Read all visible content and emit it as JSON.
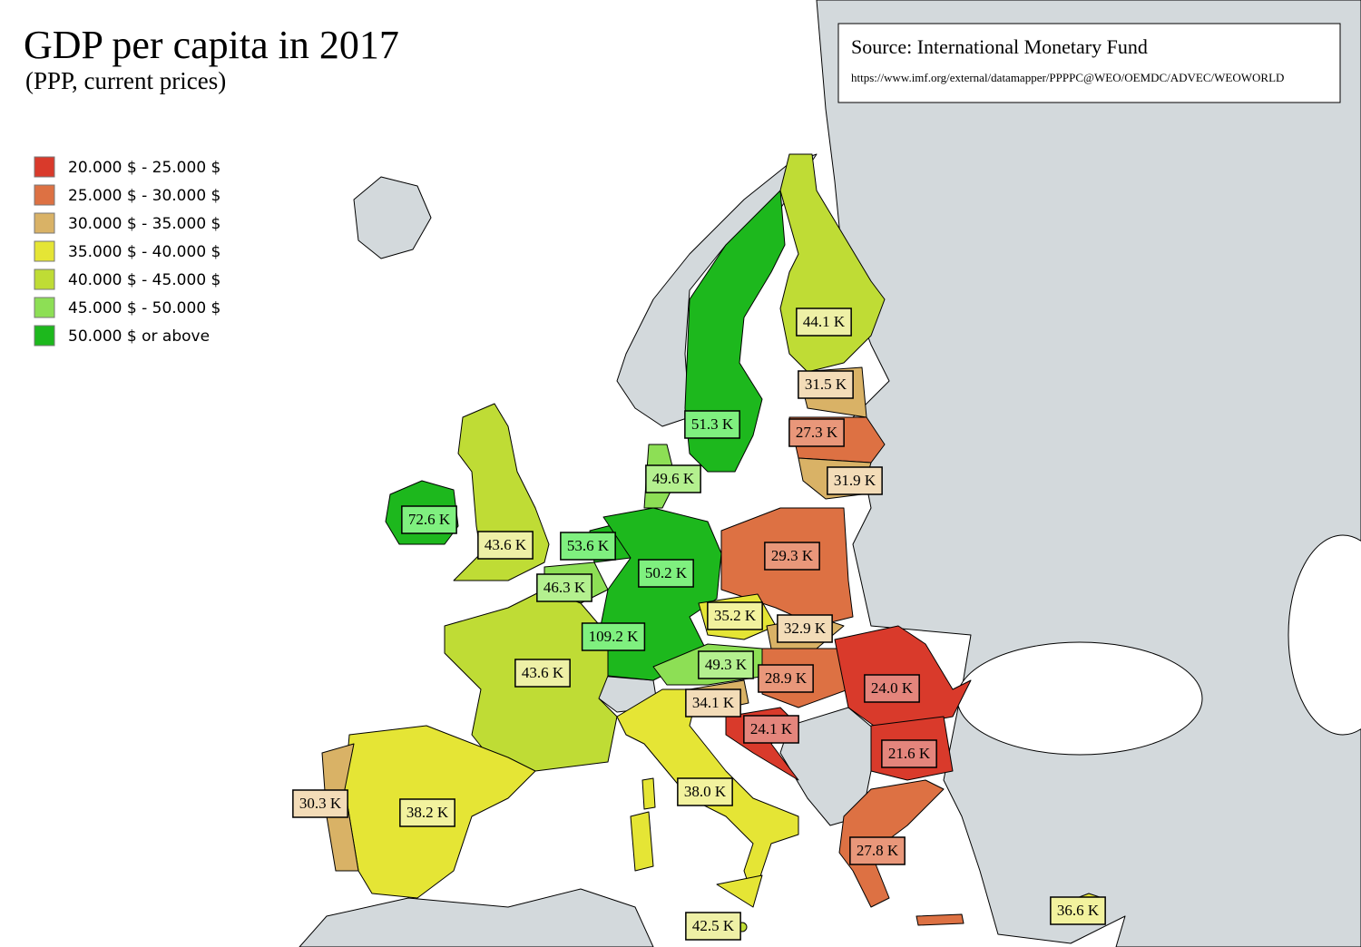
{
  "title": "GDP per capita in 2017",
  "subtitle": "(PPP, current prices)",
  "source": {
    "title": "Source: International Monetary Fund",
    "url": "https://www.imf.org/external/datamapper/PPPPC@WEO/OEMDC/ADVEC/WEOWORLD"
  },
  "legend": [
    {
      "label": "20.000 $ - 25.000 $",
      "color": "#d93a2b"
    },
    {
      "label": "25.000 $ - 30.000 $",
      "color": "#dd7143"
    },
    {
      "label": "30.000 $ - 35.000 $",
      "color": "#d9b266"
    },
    {
      "label": "35.000 $ - 40.000 $",
      "color": "#e5e535"
    },
    {
      "label": "40.000 $ - 45.000 $",
      "color": "#bfdc35"
    },
    {
      "label": "45.000 $ - 50.000 $",
      "color": "#8ddf55"
    },
    {
      "label": "50.000 $ or above",
      "color": "#1db81d"
    }
  ],
  "labels": [
    {
      "text": "44.1 K",
      "color": "#eef0a6"
    },
    {
      "text": "31.5 K",
      "color": "#f3dcb8"
    },
    {
      "text": "27.3 K",
      "color": "#e9977a"
    },
    {
      "text": "31.9 K",
      "color": "#f3dcb8"
    },
    {
      "text": "51.3 K",
      "color": "#7ff07f"
    },
    {
      "text": "49.6 K",
      "color": "#b4f08f"
    },
    {
      "text": "72.6 K",
      "color": "#7ff07f"
    },
    {
      "text": "43.6 K",
      "color": "#eef0a6"
    },
    {
      "text": "53.6 K",
      "color": "#7ff07f"
    },
    {
      "text": "46.3 K",
      "color": "#b4f08f"
    },
    {
      "text": "50.2 K",
      "color": "#7ff07f"
    },
    {
      "text": "29.3 K",
      "color": "#e9977a"
    },
    {
      "text": "35.2 K",
      "color": "#f2f29e"
    },
    {
      "text": "32.9 K",
      "color": "#f3dcb8"
    },
    {
      "text": "109.2 K",
      "color": "#7ff07f"
    },
    {
      "text": "49.3 K",
      "color": "#b4f08f"
    },
    {
      "text": "28.9 K",
      "color": "#e9977a"
    },
    {
      "text": "24.0 K",
      "color": "#e4857c"
    },
    {
      "text": "43.6 K",
      "color": "#eef0a6"
    },
    {
      "text": "34.1 K",
      "color": "#f3dcb8"
    },
    {
      "text": "24.1 K",
      "color": "#e4857c"
    },
    {
      "text": "21.6 K",
      "color": "#e4857c"
    },
    {
      "text": "38.0 K",
      "color": "#f2f29e"
    },
    {
      "text": "30.3 K",
      "color": "#f3dcb8"
    },
    {
      "text": "38.2 K",
      "color": "#f2f29e"
    },
    {
      "text": "27.8 K",
      "color": "#e9977a"
    },
    {
      "text": "36.6 K",
      "color": "#f2f29e"
    },
    {
      "text": "42.5 K",
      "color": "#eef0a6"
    }
  ]
}
